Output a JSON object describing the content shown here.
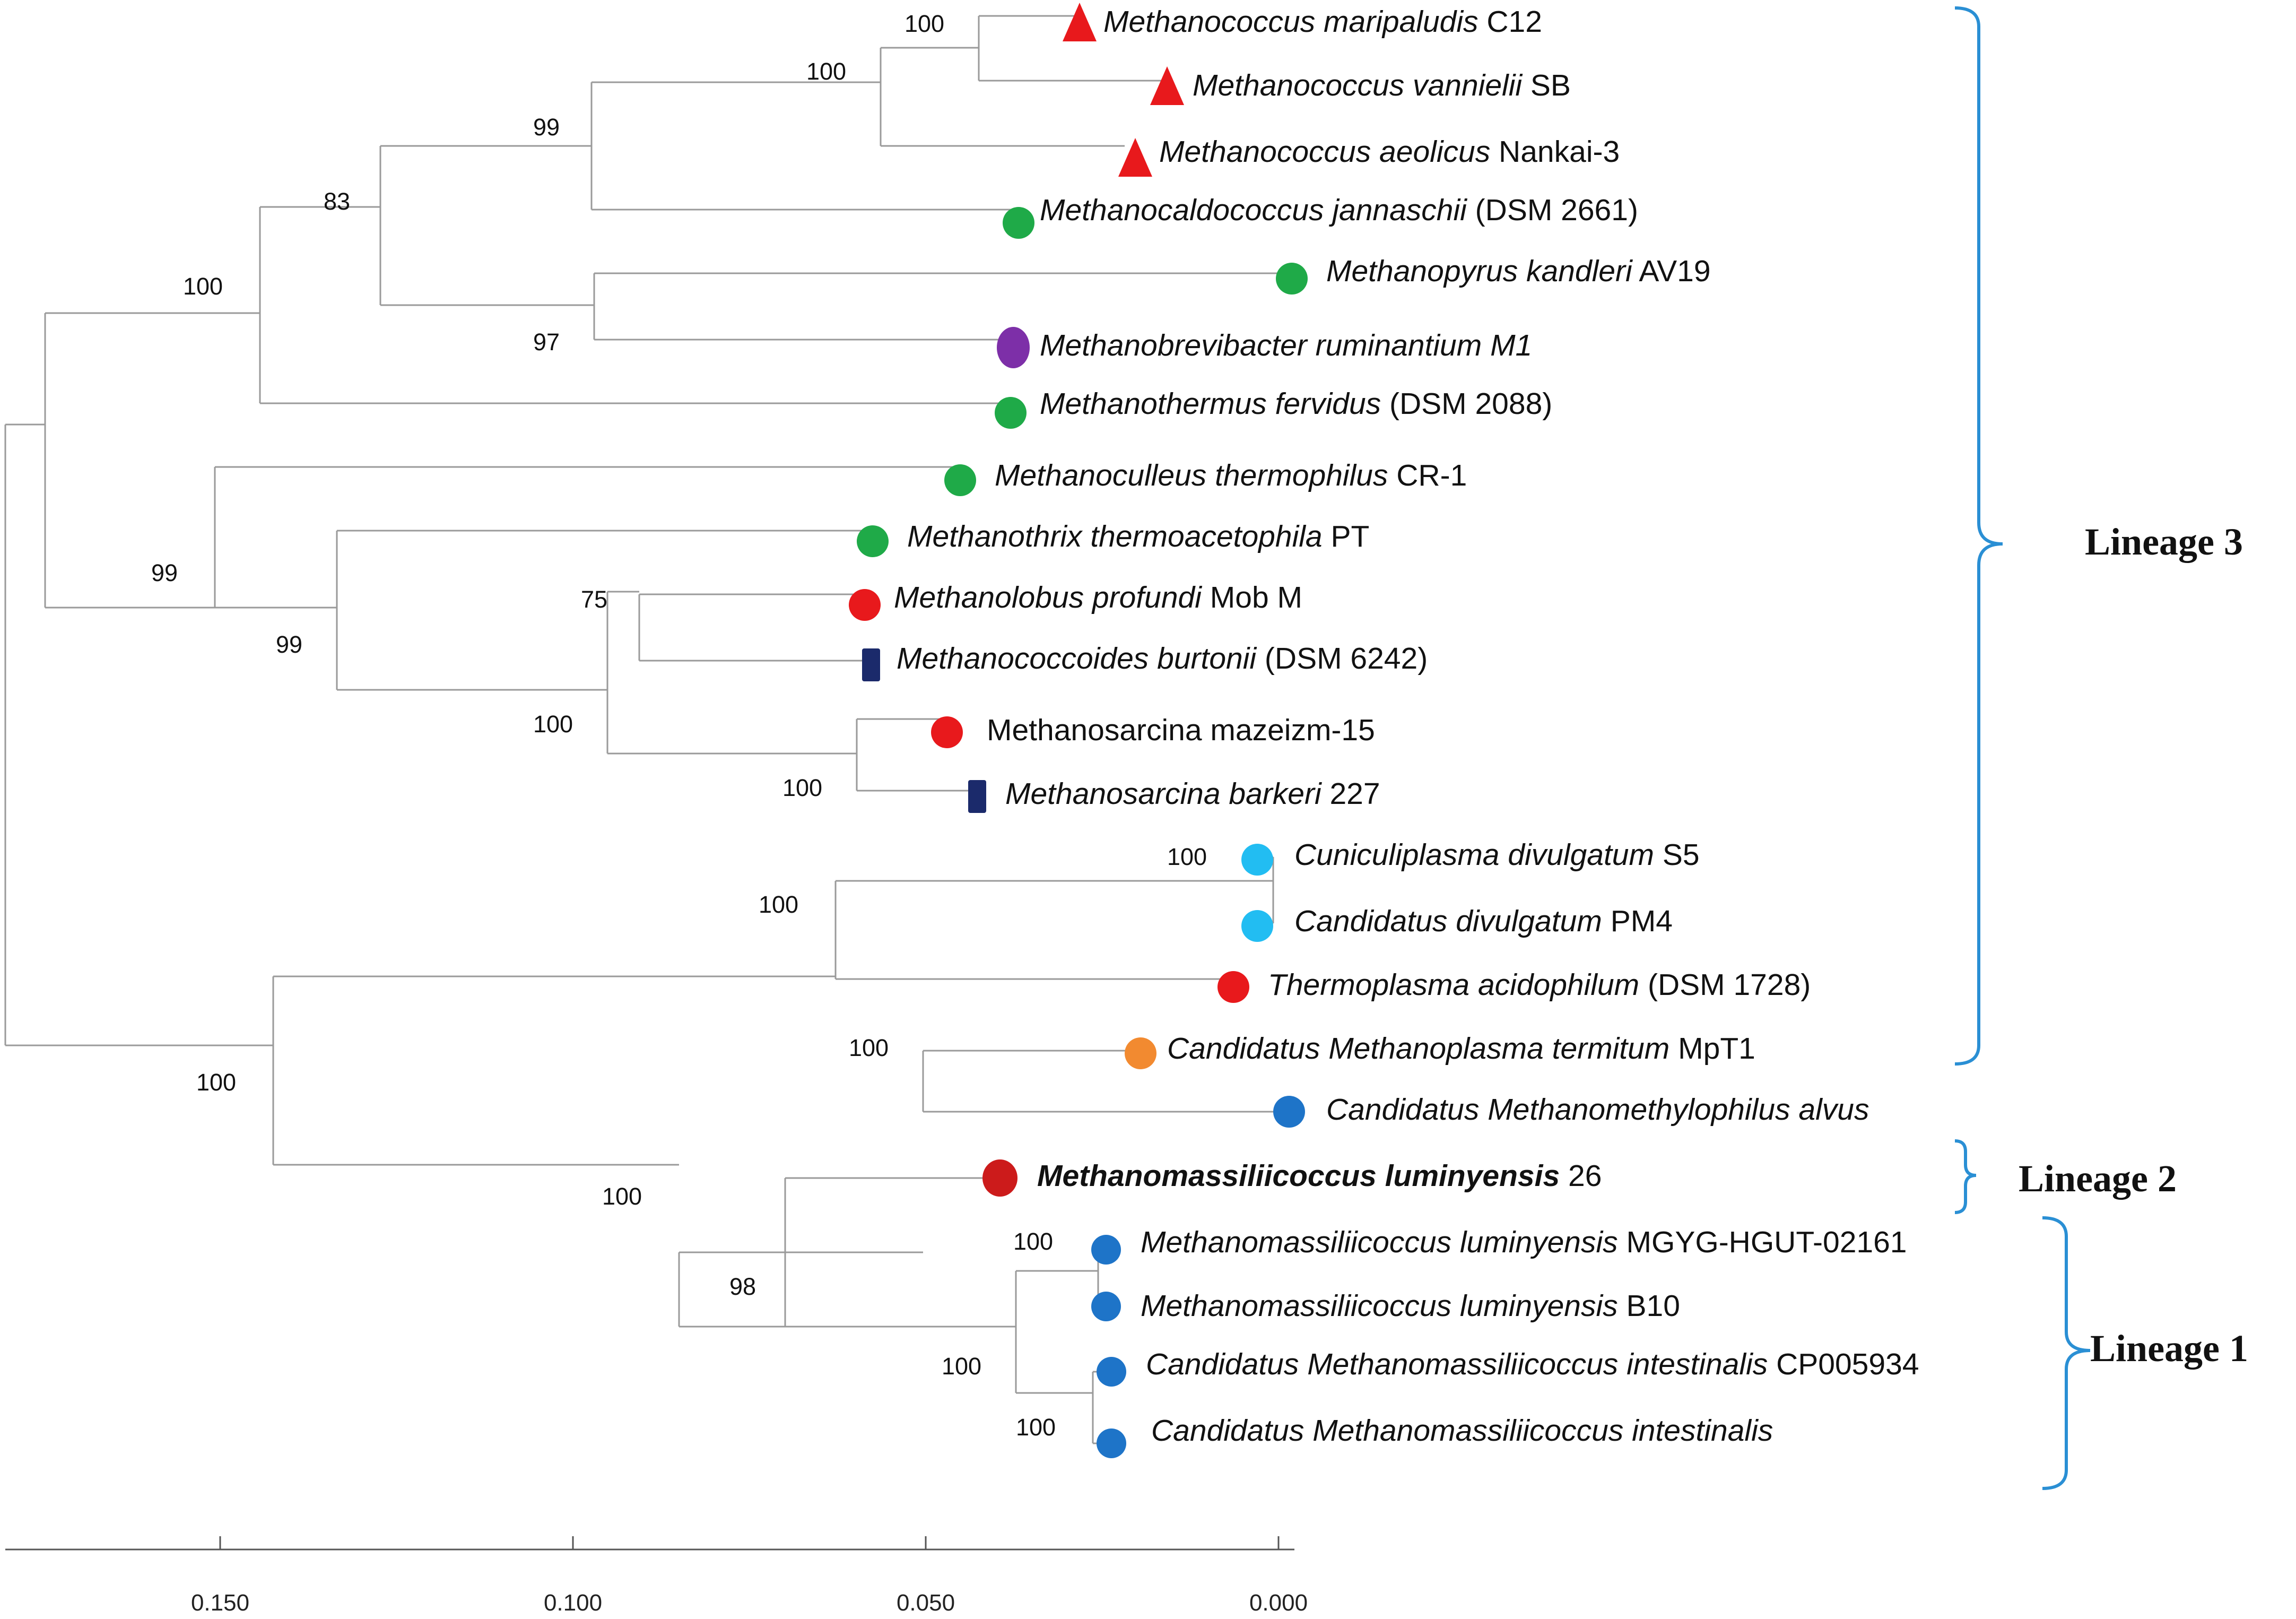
{
  "colors": {
    "red": "#e8191c",
    "green": "#1faa48",
    "purple": "#7d2fa8",
    "navy": "#1b2a6b",
    "light_blue": "#22bdf2",
    "blue": "#1e74c8",
    "dark_red": "#cc1b1b",
    "orange": "#f28a30",
    "bracket": "#2a8fd4"
  },
  "taxa": [
    {
      "genus_species": "Methanococcus maripaludis",
      "strain": "C12",
      "marker": "red-triangle"
    },
    {
      "genus_species": "Methanococcus vannielii",
      "strain": "SB",
      "marker": "red-triangle"
    },
    {
      "genus_species": "Methanococcus aeolicus",
      "strain": "Nankai-3",
      "marker": "red-triangle"
    },
    {
      "genus_species": "Methanocaldococcus jannaschii",
      "strain": "(DSM 2661)",
      "marker": "green-circle"
    },
    {
      "genus_species": "Methanopyrus kandleri",
      "strain": "AV19",
      "marker": "green-circle"
    },
    {
      "genus_species": "Methanobrevibacter ruminantium M1",
      "strain": "",
      "marker": "purple-ellipse"
    },
    {
      "genus_species": "Methanothermus fervidus",
      "strain": "(DSM 2088)",
      "marker": "green-circle"
    },
    {
      "genus_species": "Methanoculleus thermophilus",
      "strain": "CR-1",
      "marker": "green-circle"
    },
    {
      "genus_species": "Methanothrix thermoacetophila",
      "strain": "PT",
      "marker": "green-circle"
    },
    {
      "genus_species": "Methanolobus profundi",
      "strain": "Mob M",
      "marker": "red-circle"
    },
    {
      "genus_species": "Methanococcoides burtonii",
      "strain": "(DSM 6242)",
      "marker": "navy-rect"
    },
    {
      "genus_species": "",
      "strain": "Methanosarcina mazeizm-15",
      "marker": "red-circle"
    },
    {
      "genus_species": "Methanosarcina barkeri",
      "strain": "227",
      "marker": "navy-rect"
    },
    {
      "genus_species": "Cuniculiplasma divulgatum",
      "strain": "S5",
      "marker": "lightblue-circle"
    },
    {
      "genus_species": "Candidatus divulgatum",
      "strain": "PM4",
      "marker": "lightblue-circle"
    },
    {
      "genus_species": "Thermoplasma acidophilum",
      "strain": "(DSM 1728)",
      "marker": "red-circle"
    },
    {
      "genus_species": "Candidatus Methanoplasma termitum",
      "strain": "MpT1",
      "marker": "orange-circle"
    },
    {
      "genus_species": "Candidatus Methanomethylophilus alvus",
      "strain": "",
      "marker": "blue-circle"
    },
    {
      "genus_species": "Methanomassiliicoccus luminyensis",
      "strain": "26",
      "marker": "darkred-circle"
    },
    {
      "genus_species": "Methanomassiliicoccus luminyensis",
      "strain": "MGYG-HGUT-02161",
      "marker": "blue-circle"
    },
    {
      "genus_species": "Methanomassiliicoccus luminyensis",
      "strain": "B10",
      "marker": "blue-circle"
    },
    {
      "genus_species": "Candidatus Methanomassiliicoccus intestinalis",
      "strain": "CP005934",
      "marker": "blue-circle"
    },
    {
      "genus_species": "Candidatus Methanomassiliicoccus intestinalis",
      "strain": "",
      "marker": "blue-circle"
    }
  ],
  "bootstrap": [
    "100",
    "100",
    "99",
    "83",
    "100",
    "97",
    "99",
    "99",
    "75",
    "100",
    "100",
    "100",
    "100",
    "100",
    "100",
    "100",
    "98",
    "100",
    "100",
    "100"
  ],
  "lineages": [
    "Lineage 3",
    "Lineage 2",
    "Lineage 1"
  ],
  "axis_ticks": [
    "0.150",
    "0.100",
    "0.050",
    "0.000"
  ]
}
